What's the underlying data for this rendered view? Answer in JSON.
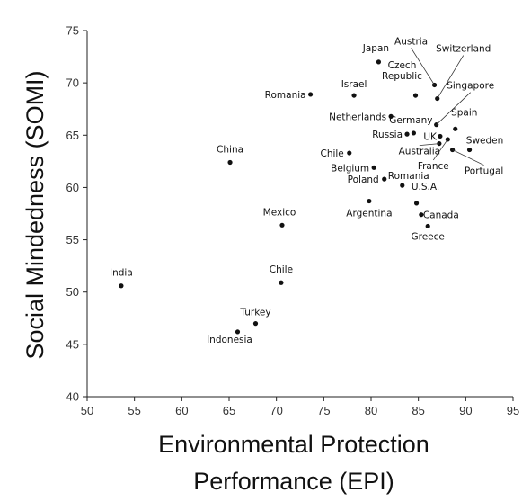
{
  "chart_data": {
    "type": "scatter",
    "title": "",
    "xlabel_line1": "Environmental Protection",
    "xlabel_line2": "Performance (EPI)",
    "ylabel": "Social Mindedness (SOMI)",
    "xlim": [
      50,
      95
    ],
    "ylim": [
      40,
      75
    ],
    "xticks": [
      50,
      55,
      60,
      65,
      70,
      75,
      80,
      85,
      90,
      95
    ],
    "yticks": [
      40,
      45,
      50,
      55,
      60,
      65,
      70,
      75
    ],
    "grid": false,
    "legend": "none",
    "marker_color": "#111111",
    "points": [
      {
        "label": "India",
        "x": 53.6,
        "y": 50.6
      },
      {
        "label": "Indonesia",
        "x": 65.9,
        "y": 46.2
      },
      {
        "label": "Turkey",
        "x": 67.8,
        "y": 47.0
      },
      {
        "label": "China",
        "x": 65.1,
        "y": 62.4
      },
      {
        "label": "Mexico",
        "x": 70.6,
        "y": 56.4
      },
      {
        "label": "Chile",
        "x": 70.5,
        "y": 50.9
      },
      {
        "label": "Romania",
        "x": 73.6,
        "y": 68.9
      },
      {
        "label": "Israel",
        "x": 78.2,
        "y": 68.8
      },
      {
        "label": "Japan",
        "x": 80.8,
        "y": 72.0
      },
      {
        "label": "Czech Republic",
        "x": 84.7,
        "y": 68.8
      },
      {
        "label": "Austria",
        "x": 86.7,
        "y": 69.8
      },
      {
        "label": "Switzerland",
        "x": 87.0,
        "y": 68.5
      },
      {
        "label": "Singapore",
        "x": 86.9,
        "y": 66.0
      },
      {
        "label": "Netherlands",
        "x": 82.1,
        "y": 66.8
      },
      {
        "label": "Germany",
        "x": 84.5,
        "y": 65.2
      },
      {
        "label": "Russia",
        "x": 83.8,
        "y": 65.1
      },
      {
        "label": "Spain",
        "x": 88.9,
        "y": 65.6
      },
      {
        "label": "UK",
        "x": 87.3,
        "y": 64.9
      },
      {
        "label": "Australia",
        "x": 87.2,
        "y": 64.2
      },
      {
        "label": "France",
        "x": 88.1,
        "y": 64.6
      },
      {
        "label": "Sweden",
        "x": 90.4,
        "y": 63.6
      },
      {
        "label": "Portugal",
        "x": 88.6,
        "y": 63.6
      },
      {
        "label": "Chile",
        "x": 77.7,
        "y": 63.3
      },
      {
        "label": "Belgium",
        "x": 80.3,
        "y": 61.9
      },
      {
        "label": "Poland",
        "x": 81.4,
        "y": 60.8
      },
      {
        "label": "Romania",
        "x": 83.3,
        "y": 60.2
      },
      {
        "label": "Argentina",
        "x": 79.8,
        "y": 58.7
      },
      {
        "label": "U.S.A.",
        "x": 84.8,
        "y": 58.5
      },
      {
        "label": "Canada",
        "x": 85.3,
        "y": 57.4
      },
      {
        "label": "Greece",
        "x": 86.0,
        "y": 56.3
      }
    ]
  }
}
